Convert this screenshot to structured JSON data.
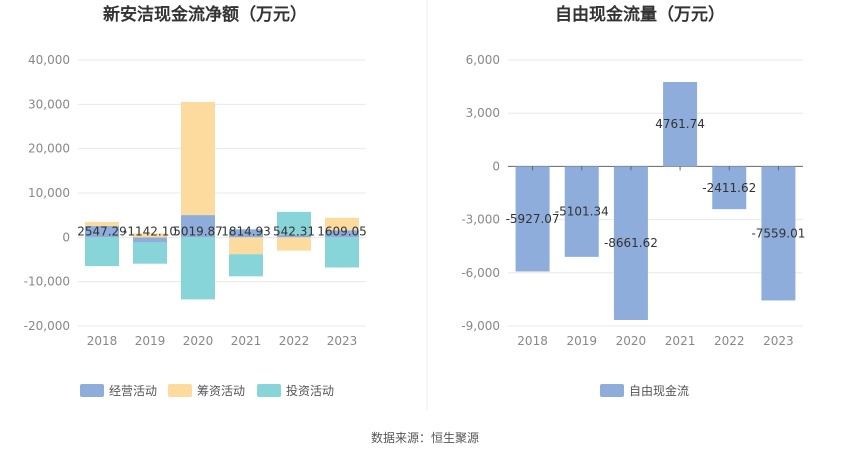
{
  "colors": {
    "operating": "#8EADDB",
    "financing": "#FDDA9E",
    "investing": "#88D5D9",
    "free_cash_flow": "#8EADDB",
    "grid": "#E8E8E8",
    "divider": "#EEEEEE"
  },
  "footer": {
    "source": "数据来源：恒生聚源"
  },
  "chart_data": [
    {
      "type": "bar",
      "stacked": true,
      "title": "新安洁现金流净额（万元）",
      "categories": [
        "2018",
        "2019",
        "2020",
        "2021",
        "2022",
        "2023"
      ],
      "ylim": [
        -20000,
        40000
      ],
      "yticks": [
        40000,
        30000,
        20000,
        10000,
        0,
        -10000,
        -20000
      ],
      "ytick_labels": [
        "40,000",
        "30,000",
        "20,000",
        "10,000",
        "0",
        "-10,000",
        "-20,000"
      ],
      "legend_position": "bottom",
      "grid": true,
      "series": [
        {
          "name": "经营活动",
          "values": [
            2547.29,
            -1142.1,
            5019.87,
            1814.93,
            542.31,
            1609.05
          ]
        },
        {
          "name": "筹资活动",
          "values": [
            900,
            900,
            25500,
            -3800,
            -3000,
            2800
          ]
        },
        {
          "name": "投资活动",
          "values": [
            -6500,
            -4800,
            -14000,
            -5000,
            5200,
            -6800
          ]
        }
      ],
      "data_labels": [
        "2547.29",
        "-1142.10",
        "5019.87",
        "1814.93",
        "542.31",
        "1609.05"
      ]
    },
    {
      "type": "bar",
      "title": "自由现金流量（万元）",
      "categories": [
        "2018",
        "2019",
        "2020",
        "2021",
        "2022",
        "2023"
      ],
      "ylim": [
        -9000,
        6000
      ],
      "yticks": [
        6000,
        3000,
        0,
        -3000,
        -6000,
        -9000
      ],
      "ytick_labels": [
        "6,000",
        "3,000",
        "0",
        "-3,000",
        "-6,000",
        "-9,000"
      ],
      "legend_position": "bottom",
      "grid": true,
      "series": [
        {
          "name": "自由现金流",
          "values": [
            -5927.07,
            -5101.34,
            -8661.62,
            4761.74,
            -2411.62,
            -7559.01
          ]
        }
      ],
      "data_labels": [
        "-5927.07",
        "-5101.34",
        "-8661.62",
        "4761.74",
        "-2411.62",
        "-7559.01"
      ]
    }
  ]
}
